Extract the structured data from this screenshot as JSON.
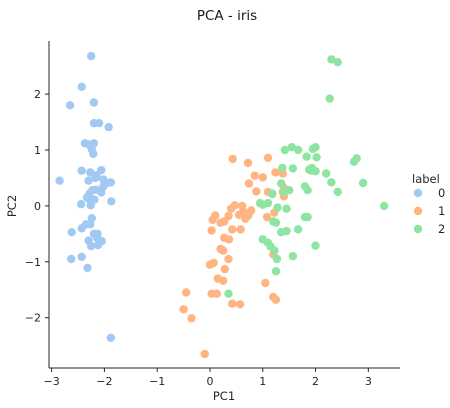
{
  "chart_data": {
    "type": "scatter",
    "title": "PCA - iris",
    "xlabel": "PC1",
    "ylabel": "PC2",
    "xlim": [
      -3.05,
      3.6
    ],
    "ylim": [
      -2.9,
      2.95
    ],
    "xticks": [
      -3,
      -2,
      -1,
      0,
      1,
      2,
      3
    ],
    "yticks": [
      -2,
      -1,
      0,
      1,
      2
    ],
    "grid": false,
    "legend": {
      "title": "label",
      "position": "right"
    },
    "series": [
      {
        "name": "0",
        "color": "#a1c9f4",
        "points": [
          [
            -2.25,
            2.68
          ],
          [
            -2.43,
            2.13
          ],
          [
            -2.65,
            1.8
          ],
          [
            -2.2,
            1.85
          ],
          [
            -2.2,
            1.48
          ],
          [
            -2.1,
            1.48
          ],
          [
            -1.92,
            1.41
          ],
          [
            -2.37,
            1.12
          ],
          [
            -2.3,
            1.1
          ],
          [
            -2.2,
            1.12
          ],
          [
            -2.24,
            1.01
          ],
          [
            -2.21,
            0.93
          ],
          [
            -2.06,
            0.64
          ],
          [
            -2.27,
            0.6
          ],
          [
            -2.43,
            0.63
          ],
          [
            -2.85,
            0.45
          ],
          [
            -2.3,
            0.45
          ],
          [
            -2.17,
            0.5
          ],
          [
            -2.15,
            0.55
          ],
          [
            -2.02,
            0.47
          ],
          [
            -1.97,
            0.4
          ],
          [
            -1.88,
            0.42
          ],
          [
            -2.02,
            0.35
          ],
          [
            -2.28,
            0.22
          ],
          [
            -2.23,
            0.28
          ],
          [
            -2.16,
            0.29
          ],
          [
            -2.06,
            0.24
          ],
          [
            -2.33,
            0.15
          ],
          [
            -2.28,
            0.11
          ],
          [
            -2.44,
            0.03
          ],
          [
            -2.19,
            0.11
          ],
          [
            -2.26,
            0.01
          ],
          [
            -1.87,
            0.08
          ],
          [
            -2.24,
            -0.22
          ],
          [
            -2.27,
            -0.33
          ],
          [
            -2.35,
            -0.33
          ],
          [
            -2.43,
            -0.4
          ],
          [
            -2.62,
            -0.47
          ],
          [
            -2.3,
            -0.62
          ],
          [
            -2.2,
            -0.5
          ],
          [
            -2.13,
            -0.5
          ],
          [
            -2.14,
            -0.57
          ],
          [
            -2.05,
            -0.63
          ],
          [
            -2.25,
            -0.72
          ],
          [
            -2.12,
            -0.7
          ],
          [
            -2.43,
            -0.91
          ],
          [
            -2.63,
            -0.95
          ],
          [
            -2.32,
            -1.11
          ],
          [
            -1.88,
            -2.36
          ]
        ]
      },
      {
        "name": "1",
        "color": "#ffb482",
        "points": [
          [
            0.43,
            0.84
          ],
          [
            1.1,
            0.86
          ],
          [
            0.72,
            0.77
          ],
          [
            0.85,
            0.54
          ],
          [
            1.0,
            0.51
          ],
          [
            1.24,
            0.6
          ],
          [
            1.38,
            0.58
          ],
          [
            1.4,
            0.32
          ],
          [
            0.74,
            0.4
          ],
          [
            0.88,
            0.26
          ],
          [
            1.1,
            0.25
          ],
          [
            1.18,
            0.21
          ],
          [
            1.38,
            0.25
          ],
          [
            1.4,
            0.17
          ],
          [
            0.4,
            -0.05
          ],
          [
            0.47,
            0.01
          ],
          [
            0.61,
            0.0
          ],
          [
            0.63,
            -0.1
          ],
          [
            0.78,
            -0.08
          ],
          [
            0.35,
            -0.18
          ],
          [
            0.55,
            -0.16
          ],
          [
            0.67,
            -0.23
          ],
          [
            0.73,
            -0.17
          ],
          [
            0.1,
            -0.17
          ],
          [
            0.05,
            -0.25
          ],
          [
            0.2,
            -0.3
          ],
          [
            0.27,
            -0.28
          ],
          [
            0.42,
            -0.42
          ],
          [
            0.58,
            -0.42
          ],
          [
            0.03,
            -0.44
          ],
          [
            0.27,
            -0.57
          ],
          [
            0.36,
            -0.6
          ],
          [
            1.22,
            -0.12
          ],
          [
            1.08,
            -0.2
          ],
          [
            0.2,
            -0.77
          ],
          [
            0.25,
            -0.8
          ],
          [
            0.35,
            -0.95
          ],
          [
            0.28,
            -1.13
          ],
          [
            0.0,
            -1.05
          ],
          [
            0.07,
            -1.02
          ],
          [
            1.2,
            -0.87
          ],
          [
            0.15,
            -1.3
          ],
          [
            0.25,
            -1.34
          ],
          [
            1.05,
            -1.38
          ],
          [
            1.2,
            -1.63
          ],
          [
            1.25,
            -1.68
          ],
          [
            -0.45,
            -1.55
          ],
          [
            0.03,
            -1.57
          ],
          [
            0.13,
            -1.57
          ],
          [
            0.42,
            -1.75
          ],
          [
            0.57,
            -1.76
          ],
          [
            -0.5,
            -1.85
          ],
          [
            -0.35,
            -2.01
          ],
          [
            -0.1,
            -2.65
          ]
        ]
      },
      {
        "name": "2",
        "color": "#8de5a1",
        "points": [
          [
            2.3,
            2.62
          ],
          [
            2.42,
            2.57
          ],
          [
            2.27,
            1.92
          ],
          [
            1.55,
            1.05
          ],
          [
            1.67,
            1.0
          ],
          [
            1.95,
            1.02
          ],
          [
            2.0,
            1.05
          ],
          [
            1.42,
            1.0
          ],
          [
            1.83,
            0.88
          ],
          [
            2.02,
            0.87
          ],
          [
            1.88,
            0.65
          ],
          [
            1.93,
            0.68
          ],
          [
            1.57,
            0.67
          ],
          [
            2.0,
            0.62
          ],
          [
            2.2,
            0.58
          ],
          [
            1.37,
            0.68
          ],
          [
            2.78,
            0.85
          ],
          [
            2.73,
            0.79
          ],
          [
            1.92,
            0.63
          ],
          [
            2.3,
            0.42
          ],
          [
            1.35,
            0.4
          ],
          [
            1.8,
            0.35
          ],
          [
            1.85,
            0.28
          ],
          [
            1.5,
            0.28
          ],
          [
            1.4,
            0.25
          ],
          [
            2.42,
            0.25
          ],
          [
            2.9,
            0.41
          ],
          [
            3.3,
            0.0
          ],
          [
            1.18,
            0.22
          ],
          [
            1.1,
            0.05
          ],
          [
            1.0,
            0.02
          ],
          [
            0.95,
            0.05
          ],
          [
            1.28,
            -0.03
          ],
          [
            1.45,
            -0.05
          ],
          [
            1.8,
            -0.2
          ],
          [
            1.85,
            -0.2
          ],
          [
            1.2,
            -0.28
          ],
          [
            1.25,
            -0.3
          ],
          [
            1.67,
            -0.42
          ],
          [
            1.45,
            -0.45
          ],
          [
            1.35,
            -0.47
          ],
          [
            1.0,
            -0.6
          ],
          [
            1.1,
            -0.66
          ],
          [
            1.15,
            -0.73
          ],
          [
            2.0,
            -0.71
          ],
          [
            1.22,
            -0.8
          ],
          [
            1.57,
            -0.9
          ],
          [
            1.27,
            -0.95
          ],
          [
            1.25,
            -1.17
          ],
          [
            0.35,
            -1.57
          ]
        ]
      }
    ]
  }
}
